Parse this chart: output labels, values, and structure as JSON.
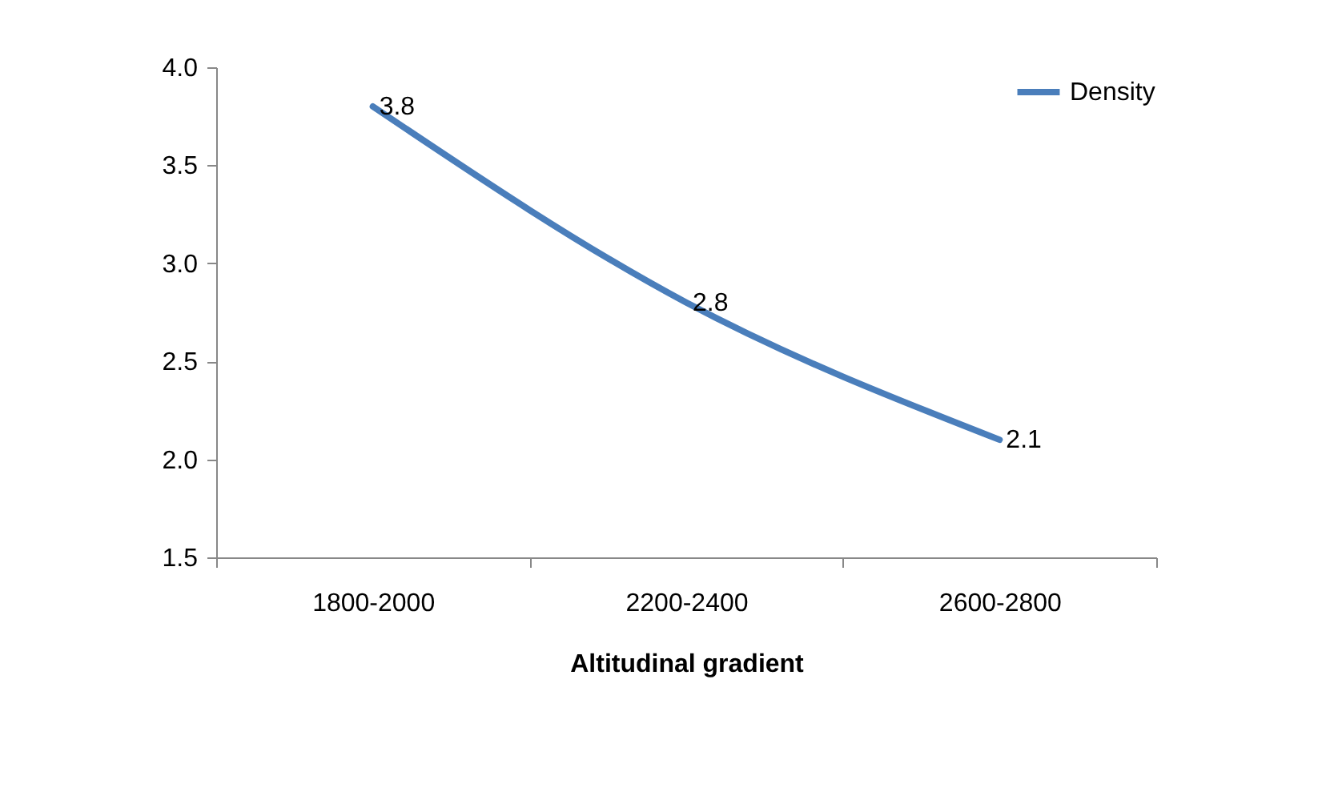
{
  "chart_data": {
    "type": "line",
    "xlabel": "Altitudinal gradient",
    "categories": [
      "1800-2000",
      "2200-2400",
      "2600-2800"
    ],
    "series": [
      {
        "name": "Density",
        "color": "#4a7ebb",
        "values": [
          3.8,
          2.8,
          2.1
        ]
      }
    ],
    "ylim": [
      1.5,
      4.0
    ],
    "yticks": [
      {
        "value": 1.5,
        "label": "1.5"
      },
      {
        "value": 2,
        "label": "2.0"
      },
      {
        "value": 2.5,
        "label": "2.5"
      },
      {
        "value": 3,
        "label": "3.0"
      },
      {
        "value": 3.5,
        "label": "3.5"
      },
      {
        "value": 4,
        "label": "4.0"
      }
    ],
    "grid": false,
    "legend": "top right",
    "marker": "none",
    "line_style": "solid",
    "data_labels": true
  }
}
